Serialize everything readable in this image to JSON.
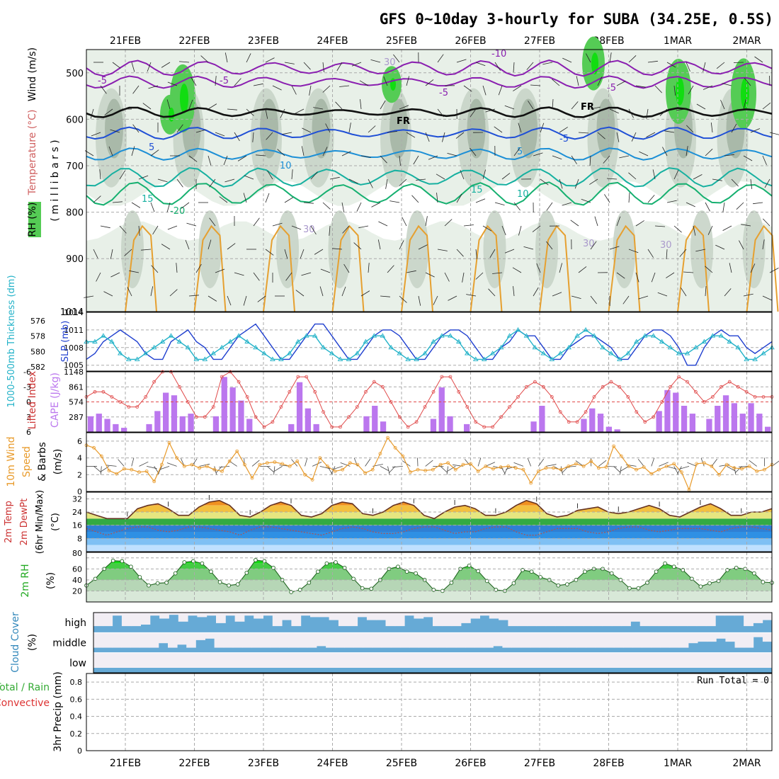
{
  "title": "GFS 0~10day 3-hourly for SUBA (34.25E, 0.5S)",
  "dates": [
    "21FEB",
    "22FEB",
    "23FEB",
    "24FEB",
    "25FEB",
    "26FEB",
    "27FEB",
    "28FEB",
    "1MAR",
    "2MAR"
  ],
  "colors": {
    "frame": "#000000",
    "grid": "#aaaaaa",
    "rh_light": "#e8f0e8",
    "rh_mid": "#c8d4c8",
    "rh_dark": "#a9b9a9",
    "rh_green": "#55cc55",
    "rh_bright": "#11dd11",
    "temp_purple": "#8a1fb0",
    "temp_blue": "#1f4fd6",
    "temp_lightblue": "#1c8fd6",
    "temp_teal": "#16b0a0",
    "temp_green": "#16b070",
    "temp_orange": "#e6a030",
    "slp_line": "#1f3fcf",
    "thick_line": "#22b2c8",
    "li_line": "#e04a4a",
    "cape_bar": "#bb77ee",
    "wind_line": "#e89a2a",
    "rh2m_fill": "#33cc33",
    "cloud": "#66aad6",
    "cloud_gap": "#f2eef4",
    "precip_label_green": "#33aa33",
    "precip_label_red": "#dd3333"
  },
  "upper_panel": {
    "ylabel_wind": "Wind (m/s)",
    "ylabel_temp": "Temperature (°C)",
    "ylabel_rh": "RH (%)",
    "ylabel_units": "( m i l l i b a r s )",
    "yticks": [
      "500",
      "600",
      "700",
      "800",
      "900",
      "1014"
    ],
    "ytick_values": [
      500,
      600,
      700,
      800,
      900,
      1014
    ],
    "ylim": [
      450,
      1014
    ],
    "contour_labels": [
      "-10",
      "-5",
      "-5",
      "-5",
      "-5",
      "FR",
      "FR",
      "-5",
      "5",
      "5",
      "10",
      "10",
      "15",
      "15",
      "-20",
      "30",
      "30",
      "30",
      "30"
    ]
  },
  "chart_data": [
    {
      "type": "line",
      "name": "slp_thickness",
      "ylabel_left": "1000-500mb Thickness (dm)",
      "ylabel_right": "SLP (mb)",
      "left_ticks": [
        "576",
        "578",
        "580",
        "582"
      ],
      "left_values": [
        576,
        578,
        580,
        582
      ],
      "right_ticks": [
        "1005",
        "1008",
        "1011",
        "1014"
      ],
      "right_values": [
        1005,
        1008,
        1011,
        1014
      ],
      "ylim_right": [
        1004,
        1014
      ],
      "series": [
        {
          "name": "SLP (mb)",
          "values": [
            1006,
            1007,
            1009,
            1010,
            1011,
            1010,
            1009,
            1007,
            1006,
            1006,
            1009,
            1010,
            1011,
            1009,
            1008,
            1006,
            1006,
            1008,
            1010,
            1011,
            1012,
            1010,
            1008,
            1006,
            1006,
            1008,
            1010,
            1012,
            1012,
            1010,
            1008,
            1006,
            1006,
            1008,
            1010,
            1011,
            1011,
            1010,
            1008,
            1006,
            1006,
            1008,
            1010,
            1011,
            1011,
            1010,
            1008,
            1006,
            1006,
            1008,
            1009,
            1011,
            1010,
            1010,
            1008,
            1006,
            1006,
            1008,
            1009,
            1010,
            1010,
            1009,
            1008,
            1006,
            1006,
            1008,
            1010,
            1011,
            1011,
            1010,
            1008,
            1005,
            1005,
            1008,
            1010,
            1011,
            1010,
            1010,
            1008,
            1007,
            1008,
            1009
          ]
        },
        {
          "name": "Thickness (dm)",
          "values": [
            1009,
            1009,
            1010,
            1009,
            1007,
            1006,
            1006,
            1007,
            1008,
            1009,
            1010,
            1009,
            1008,
            1006,
            1006,
            1007,
            1008,
            1009,
            1010,
            1009,
            1008,
            1007,
            1006,
            1006,
            1007,
            1009,
            1010,
            1010,
            1008,
            1007,
            1006,
            1006,
            1007,
            1009,
            1010,
            1010,
            1008,
            1007,
            1006,
            1006,
            1007,
            1009,
            1010,
            1010,
            1009,
            1007,
            1006,
            1006,
            1007,
            1008,
            1010,
            1011,
            1010,
            1008,
            1007,
            1006,
            1007,
            1008,
            1010,
            1011,
            1010,
            1008,
            1007,
            1006,
            1007,
            1009,
            1010,
            1010,
            1009,
            1008,
            1007,
            1007,
            1008,
            1009,
            1010,
            1010,
            1009,
            1008,
            1006,
            1006,
            1007,
            1008
          ]
        }
      ]
    },
    {
      "type": "bar",
      "name": "cape_li",
      "ylabel_left": "Lifted Index",
      "ylabel_right": "CAPE (J/kg)",
      "left_ticks": [
        "-6",
        "-3",
        "0",
        "3",
        "6"
      ],
      "left_values": [
        -6,
        -3,
        0,
        3,
        6
      ],
      "right_ticks": [
        "287",
        "574",
        "861",
        "1148"
      ],
      "right_values": [
        287,
        574,
        861,
        1148
      ],
      "ylim_right": [
        0,
        1148
      ],
      "series": [
        {
          "name": "CAPE (J/kg)",
          "values": [
            300,
            350,
            250,
            150,
            80,
            0,
            0,
            150,
            400,
            750,
            700,
            300,
            350,
            0,
            0,
            300,
            1050,
            850,
            600,
            250,
            0,
            0,
            0,
            0,
            150,
            950,
            450,
            150,
            0,
            0,
            0,
            0,
            0,
            300,
            500,
            200,
            0,
            0,
            0,
            0,
            0,
            250,
            850,
            300,
            0,
            150,
            0,
            0,
            0,
            0,
            0,
            0,
            0,
            200,
            500,
            0,
            0,
            0,
            0,
            250,
            450,
            350,
            100,
            50,
            0,
            0,
            0,
            0,
            400,
            800,
            750,
            500,
            350,
            0,
            250,
            500,
            700,
            550,
            350,
            550,
            350,
            100
          ]
        },
        {
          "name": "Lifted Index",
          "values": [
            -1,
            -2,
            -2,
            -1,
            0,
            1,
            1,
            -1,
            -4,
            -6,
            -6,
            -3,
            0,
            3,
            3,
            1,
            -5,
            -6,
            -4,
            -1,
            3,
            5,
            4,
            1,
            -2,
            -5,
            -5,
            -2,
            2,
            5,
            5,
            3,
            1,
            -2,
            -4,
            -3,
            0,
            3,
            5,
            4,
            1,
            -2,
            -5,
            -5,
            -2,
            1,
            4,
            5,
            5,
            3,
            1,
            -1,
            -3,
            -4,
            -3,
            -1,
            2,
            4,
            4,
            2,
            -1,
            -3,
            -4,
            -3,
            -1,
            2,
            4,
            3,
            0,
            -3,
            -5,
            -4,
            -2,
            0,
            -1,
            -3,
            -4,
            -3,
            -2,
            -1,
            -1,
            -1
          ]
        }
      ]
    },
    {
      "type": "line",
      "name": "wind10m",
      "ylabel": "10m Wind Speed & Barbs (m/s)",
      "left_ticks": [
        "0",
        "2",
        "4",
        "6"
      ],
      "left_values": [
        0,
        2,
        4,
        6
      ],
      "ylim": [
        0,
        7
      ],
      "series": [
        {
          "name": "10m Wind Speed (m/s)",
          "values": [
            5.5,
            5.2,
            4.2,
            2.5,
            2.1,
            2.7,
            2.6,
            2.3,
            2.4,
            1.2,
            3.2,
            5.8,
            4.0,
            3.0,
            3.2,
            2.8,
            3.0,
            2.6,
            2.4,
            3.6,
            4.8,
            3.2,
            1.6,
            3.2,
            3.4,
            3.5,
            3.3,
            3.0,
            3.6,
            2.0,
            1.4,
            4.0,
            3.0,
            2.4,
            2.6,
            3.4,
            3.2,
            2.2,
            2.6,
            4.5,
            6.4,
            5.2,
            4.2,
            2.3,
            2.6,
            2.5,
            2.6,
            3.2,
            3.4,
            2.6,
            3.2,
            3.3,
            2.4,
            3.0,
            2.7,
            2.9,
            3.0,
            2.8,
            2.6,
            1.0,
            2.4,
            2.8,
            2.8,
            2.6,
            3.0,
            3.3,
            3.0,
            3.6,
            2.8,
            2.9,
            5.4,
            4.2,
            3.0,
            2.6,
            2.9,
            2.1,
            2.6,
            3.0,
            3.3,
            2.3,
            0.2,
            3.3,
            3.4,
            3.0,
            2.0,
            3.2,
            2.8,
            2.7,
            3.0,
            2.4,
            2.6,
            3.2
          ]
        }
      ]
    },
    {
      "type": "area",
      "name": "temp2m",
      "ylabel": "2m Temp 2m DewPt (6hr Min/Max) (°C)",
      "left_ticks": [
        "8",
        "16",
        "24",
        "32"
      ],
      "left_values": [
        8,
        16,
        24,
        32
      ],
      "ylim": [
        0,
        36
      ],
      "series": [
        {
          "name": "2m Temp (°C)",
          "values": [
            24,
            22,
            20,
            20,
            20,
            26,
            28,
            29,
            26,
            22,
            22,
            27,
            30,
            31,
            28,
            22,
            21,
            24,
            28,
            30,
            28,
            22,
            21,
            23,
            28,
            30,
            29,
            23,
            22,
            24,
            28,
            30,
            28,
            22,
            20,
            24,
            27,
            28,
            26,
            22,
            22,
            24,
            28,
            31,
            29,
            23,
            21,
            22,
            25,
            26,
            27,
            24,
            23,
            24,
            26,
            28,
            26,
            22,
            21,
            24,
            27,
            29,
            26,
            22,
            22,
            24,
            24,
            26
          ]
        },
        {
          "name": "2m DewPt (°C)",
          "values": [
            14,
            12,
            10,
            12,
            14,
            15,
            15,
            13,
            12,
            13,
            15,
            15,
            14,
            13,
            12,
            10,
            13,
            15,
            15,
            14,
            13,
            12,
            11,
            10,
            12,
            14,
            15,
            14,
            12,
            11,
            11,
            12,
            14,
            15,
            15,
            13,
            11,
            12,
            12,
            14,
            15,
            15,
            12,
            10,
            10,
            12,
            14,
            14,
            14,
            12,
            11,
            12,
            14,
            15,
            15,
            13,
            12,
            13,
            14,
            14,
            14,
            13,
            12,
            14,
            15,
            15,
            14,
            13
          ]
        }
      ],
      "label_80": "80"
    },
    {
      "type": "area",
      "name": "rh2m",
      "ylabel": "2m RH (%)",
      "left_ticks": [
        "20",
        "40",
        "60",
        "80"
      ],
      "left_values": [
        20,
        40,
        60,
        80
      ],
      "ylim": [
        0,
        90
      ],
      "series": [
        {
          "name": "2m RH (%)",
          "values": [
            30,
            42,
            60,
            75,
            74,
            64,
            45,
            30,
            34,
            35,
            52,
            72,
            74,
            70,
            55,
            36,
            30,
            32,
            53,
            76,
            74,
            62,
            40,
            18,
            22,
            35,
            55,
            70,
            72,
            62,
            42,
            25,
            24,
            40,
            60,
            64,
            55,
            52,
            40,
            22,
            20,
            35,
            60,
            66,
            56,
            38,
            22,
            20,
            34,
            58,
            55,
            45,
            40,
            30,
            32,
            40,
            55,
            60,
            60,
            52,
            40,
            25,
            25,
            35,
            55,
            70,
            64,
            58,
            42,
            28,
            34,
            38,
            58,
            62,
            60,
            52,
            36,
            35
          ]
        }
      ]
    },
    {
      "type": "heatmap",
      "name": "cloud_cover",
      "ylabel": "Cloud Cover (%)",
      "row_labels": [
        "high",
        "middle",
        "low"
      ],
      "series": [
        {
          "name": "high",
          "values": [
            10,
            10,
            80,
            10,
            10,
            20,
            80,
            60,
            85,
            40,
            80,
            70,
            80,
            30,
            80,
            40,
            80,
            60,
            80,
            10,
            50,
            10,
            80,
            70,
            70,
            50,
            10,
            10,
            70,
            50,
            50,
            10,
            10,
            80,
            60,
            70,
            10,
            10,
            10,
            30,
            60,
            80,
            60,
            50,
            10,
            10,
            10,
            10,
            10,
            10,
            10,
            10,
            10,
            10,
            10,
            10,
            10,
            40,
            10,
            10,
            10,
            10,
            10,
            10,
            10,
            10,
            80,
            80,
            80,
            10,
            30,
            50
          ]
        },
        {
          "name": "middle",
          "values": [
            0,
            0,
            0,
            0,
            0,
            0,
            0,
            30,
            0,
            20,
            0,
            50,
            60,
            0,
            0,
            0,
            0,
            0,
            0,
            0,
            0,
            0,
            0,
            0,
            10,
            0,
            0,
            0,
            0,
            0,
            0,
            0,
            0,
            0,
            0,
            0,
            0,
            0,
            0,
            0,
            0,
            0,
            0,
            10,
            0,
            0,
            0,
            0,
            0,
            0,
            0,
            0,
            0,
            0,
            0,
            0,
            0,
            0,
            0,
            0,
            0,
            0,
            0,
            0,
            30,
            40,
            40,
            60,
            40,
            0,
            0,
            70,
            40
          ]
        },
        {
          "name": "low",
          "values": [
            0,
            0,
            0,
            0,
            0,
            0,
            0,
            0,
            0,
            0,
            0,
            0,
            0,
            0,
            0,
            0,
            0,
            0,
            0,
            0,
            0,
            0,
            0,
            0,
            0,
            0,
            0,
            0,
            0,
            0,
            0,
            0,
            0,
            0,
            0,
            0,
            0,
            0,
            0,
            0,
            0,
            0,
            0,
            0,
            0,
            0,
            0,
            0,
            0,
            0,
            0,
            0,
            0,
            0,
            0,
            0,
            0,
            0,
            0,
            0,
            0,
            0,
            0,
            0,
            0,
            0,
            0,
            0,
            0,
            0,
            0,
            0
          ]
        }
      ]
    },
    {
      "type": "bar",
      "name": "precip3hr",
      "ylabel": "3hr Precip (mm)",
      "legend_total": "Total / Rain",
      "legend_conv": "Convective",
      "run_total": "Run Total = 0",
      "left_ticks": [
        "0",
        "0.2",
        "0.4",
        "0.6",
        "0.8"
      ],
      "left_values": [
        0,
        0.2,
        0.4,
        0.6,
        0.8
      ],
      "ylim": [
        0,
        0.9
      ],
      "series": [
        {
          "name": "Total / Rain",
          "values": []
        },
        {
          "name": "Convective",
          "values": []
        }
      ]
    }
  ]
}
